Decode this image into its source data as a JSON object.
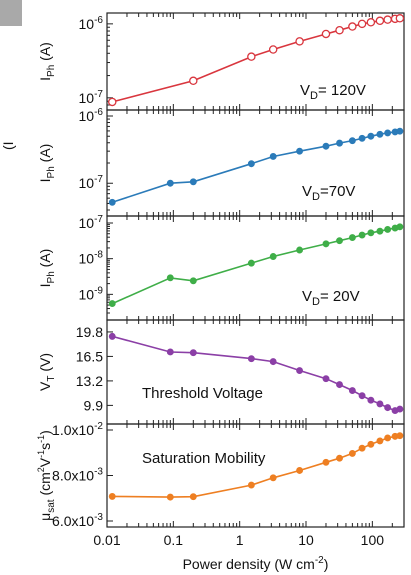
{
  "corner_label": "(I",
  "chart_data": {
    "type": "line",
    "shared_x": {
      "label": "Power density (W cm",
      "label_sup": "-2",
      "label_close": ")",
      "scale": "log",
      "xlim": [
        0.01,
        300
      ],
      "ticks": [
        {
          "value": 0.01,
          "text": "0.01"
        },
        {
          "value": 0.1,
          "text": "0.1"
        },
        {
          "value": 1,
          "text": "1"
        },
        {
          "value": 10,
          "text": "10"
        },
        {
          "value": 100,
          "text": "100"
        }
      ]
    },
    "panels": [
      {
        "key": "p120",
        "color": "#d9363e",
        "marker": "open-circle",
        "scale": "log",
        "ylim": [
          8e-08,
          1.2e-06
        ],
        "ylabel": "I",
        "ylabel_sub": "Ph",
        "ylabel_unit": " (A)",
        "yticks": [
          {
            "value": 1e-06,
            "base": "10",
            "exp": "-6"
          },
          {
            "value": 1e-07,
            "base": "10",
            "exp": "-7"
          }
        ],
        "annotation": "V",
        "annotation_sub": "D",
        "annotation_rest": "= 120V",
        "x": [
          0.012,
          0.2,
          1.5,
          3.2,
          8,
          20,
          32,
          50,
          70,
          95,
          130,
          170,
          220,
          260
        ],
        "y": [
          8.8e-08,
          1.7e-07,
          3.6e-07,
          4.5e-07,
          5.8e-07,
          7.3e-07,
          8.2e-07,
          9.2e-07,
          1e-06,
          1.05e-06,
          1.1e-06,
          1.14e-06,
          1.17e-06,
          1.19e-06
        ]
      },
      {
        "key": "p70",
        "color": "#2b7bb9",
        "marker": "filled-circle",
        "scale": "log",
        "ylim": [
          4e-08,
          1e-06
        ],
        "ylabel": "I",
        "ylabel_sub": "Ph",
        "ylabel_unit": " (A)",
        "yticks": [
          {
            "value": 1e-06,
            "base": "10",
            "exp": "-6"
          },
          {
            "value": 1e-07,
            "base": "10",
            "exp": "-7"
          }
        ],
        "annotation": "V",
        "annotation_sub": "D",
        "annotation_rest": "=70V",
        "x": [
          0.012,
          0.09,
          0.2,
          1.5,
          3.2,
          8,
          20,
          32,
          50,
          70,
          95,
          130,
          170,
          220,
          260
        ],
        "y": [
          5.2e-08,
          1e-07,
          1.05e-07,
          1.95e-07,
          2.5e-07,
          3e-07,
          3.55e-07,
          3.95e-07,
          4.3e-07,
          4.65e-07,
          5e-07,
          5.35e-07,
          5.6e-07,
          5.8e-07,
          5.95e-07
        ]
      },
      {
        "key": "p20",
        "color": "#3fae48",
        "marker": "filled-circle",
        "scale": "log",
        "ylim": [
          3e-10,
          1e-07
        ],
        "ylabel": "I",
        "ylabel_sub": "Ph",
        "ylabel_unit": " (A)",
        "yticks": [
          {
            "value": 1e-07,
            "base": "10",
            "exp": "-7"
          },
          {
            "value": 1e-08,
            "base": "10",
            "exp": "-8"
          },
          {
            "value": 1e-09,
            "base": "10",
            "exp": "-9"
          }
        ],
        "annotation": "V",
        "annotation_sub": "D",
        "annotation_rest": "= 20V",
        "x": [
          0.012,
          0.09,
          0.2,
          1.5,
          3.2,
          8,
          20,
          32,
          50,
          70,
          95,
          130,
          170,
          220,
          260
        ],
        "y": [
          5.5e-10,
          2.9e-09,
          2.4e-09,
          7.5e-09,
          1.15e-08,
          1.75e-08,
          2.6e-08,
          3.2e-08,
          3.9e-08,
          4.6e-08,
          5.3e-08,
          5.9e-08,
          6.6e-08,
          7.2e-08,
          7.8e-08
        ]
      },
      {
        "key": "vt",
        "color": "#8b3fa6",
        "marker": "filled-circle",
        "scale": "linear",
        "ylim": [
          8.2,
          20.6
        ],
        "ylabel": "V",
        "ylabel_sub": "T",
        "ylabel_unit": " (V)",
        "yticks": [
          {
            "value": 19.8,
            "text": "19.8"
          },
          {
            "value": 16.5,
            "text": "16.5"
          },
          {
            "value": 13.2,
            "text": "13.2"
          },
          {
            "value": 9.9,
            "text": "9.9"
          }
        ],
        "annotation": "Threshold Voltage",
        "x": [
          0.012,
          0.09,
          0.2,
          1.5,
          3.2,
          8,
          20,
          32,
          50,
          70,
          95,
          130,
          170,
          220,
          260
        ],
        "y": [
          19.2,
          17.1,
          17.0,
          16.2,
          15.8,
          14.6,
          13.5,
          12.7,
          11.9,
          11.2,
          10.6,
          10.1,
          9.6,
          9.2,
          9.4
        ]
      },
      {
        "key": "mu",
        "color": "#ee7f22",
        "marker": "filled-circle",
        "scale": "linear",
        "ylim": [
          0.006,
          0.01
        ],
        "ylabel": "μ",
        "ylabel_sub": "sat",
        "ylabel_unit": " (cm",
        "ylabel_tail": "V",
        "ylabel_tail2": "s",
        "ylabel_close": ")",
        "yticks": [
          {
            "value": 0.01,
            "text": "1.0x10",
            "exp": "-2"
          },
          {
            "value": 0.008,
            "text": "8.0x10",
            "exp": "-3"
          },
          {
            "value": 0.006,
            "text": "6.0x10",
            "exp": "-3"
          }
        ],
        "annotation": "Saturation Mobility",
        "x": [
          0.012,
          0.09,
          0.2,
          1.5,
          3.2,
          8,
          20,
          32,
          50,
          70,
          95,
          130,
          170,
          220,
          260
        ],
        "y": [
          0.00708,
          0.00705,
          0.00707,
          0.00758,
          0.0079,
          0.00822,
          0.00858,
          0.00876,
          0.00897,
          0.0092,
          0.00937,
          0.00952,
          0.00965,
          0.00972,
          0.00975
        ]
      }
    ]
  }
}
